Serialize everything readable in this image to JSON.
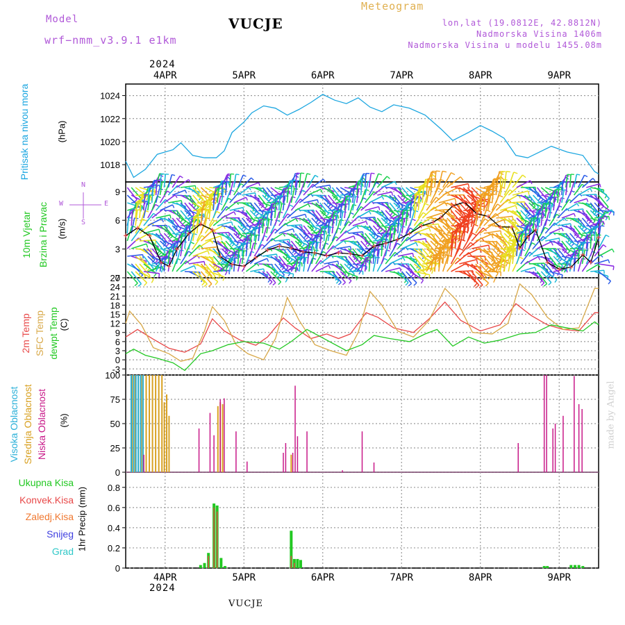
{
  "header": {
    "model_label": "Model",
    "model_name": "wrf−nmm_v3.9.1  e1km",
    "station": "VUCJE",
    "product": "Meteogram",
    "coords": "lon,lat (19.0812E, 42.8812N)",
    "altitude": "Nadmorska Visina 1406m",
    "model_altitude": "Nadmorska Visina u modelu 1455.08m",
    "year_top": "2024",
    "year_bottom": "2024",
    "footer_station": "VUCJE",
    "watermark": "made by Angel"
  },
  "colors": {
    "pressure": "#1ba6e0",
    "temp2m": "#e84848",
    "sfctemp": "#d8a848",
    "dewpoint": "#22c822",
    "high_cloud": "#2ab0d8",
    "mid_cloud": "#d8a020",
    "low_cloud": "#c81888",
    "total_precip": "#22c822",
    "conv_precip": "#e84848",
    "freezing_rain": "#f07830",
    "snow": "#4040e0",
    "graupel": "#30c8c8",
    "legend_purple": "#b058d8"
  },
  "panels": {
    "pressure": {
      "label": "Pritisak na nivou mora",
      "unit": "(hPa)"
    },
    "wind": {
      "label_1": "10m Vjetar",
      "label_2": "Brzina i Pravac",
      "unit": "(m/s)",
      "compass_n": "N",
      "compass_s": "S",
      "compass_w": "W",
      "compass_e": "E"
    },
    "temp": {
      "label_2m": "2m Temp",
      "label_sfc": "SFC Temp",
      "label_dew": "dewpt Temp",
      "unit": "(C)"
    },
    "cloud": {
      "label_high": "Visoka Oblacnost",
      "label_mid": "Srednja Oblacnost",
      "label_low": "Niska Oblacnost",
      "unit": "(%)"
    },
    "precip": {
      "unit": "1hr Precip (mm)",
      "legend": [
        "Ukupna Kisa",
        "Konvek.Kisa",
        "Zaledj.Kisa",
        "Snijeg",
        "Grad"
      ]
    }
  },
  "chart_data": {
    "type": "line",
    "x_start_day": 3.5,
    "x_end_day": 9.5,
    "x_tick_labels": [
      "4APR",
      "5APR",
      "6APR",
      "7APR",
      "8APR",
      "9APR"
    ],
    "x_tick_days": [
      4,
      5,
      6,
      7,
      8,
      9
    ],
    "pressure": {
      "ylim": [
        1016.5,
        1025
      ],
      "y_ticks": [
        1018,
        1020,
        1022,
        1024
      ],
      "values": [
        [
          3.5,
          1018.3
        ],
        [
          3.6,
          1016.9
        ],
        [
          3.75,
          1017.6
        ],
        [
          3.9,
          1018.9
        ],
        [
          4.1,
          1019.3
        ],
        [
          4.2,
          1019.9
        ],
        [
          4.35,
          1018.8
        ],
        [
          4.5,
          1018.6
        ],
        [
          4.65,
          1018.6
        ],
        [
          4.75,
          1019.2
        ],
        [
          4.85,
          1020.8
        ],
        [
          5.0,
          1021.7
        ],
        [
          5.1,
          1022.5
        ],
        [
          5.25,
          1023.1
        ],
        [
          5.4,
          1022.9
        ],
        [
          5.55,
          1022.3
        ],
        [
          5.7,
          1022.8
        ],
        [
          5.85,
          1023.4
        ],
        [
          6.0,
          1024.1
        ],
        [
          6.15,
          1023.6
        ],
        [
          6.3,
          1023.3
        ],
        [
          6.45,
          1023.8
        ],
        [
          6.6,
          1023.0
        ],
        [
          6.75,
          1022.6
        ],
        [
          6.9,
          1023.2
        ],
        [
          7.1,
          1022.9
        ],
        [
          7.3,
          1022.3
        ],
        [
          7.5,
          1021.1
        ],
        [
          7.65,
          1020.1
        ],
        [
          7.85,
          1020.8
        ],
        [
          8.0,
          1021.4
        ],
        [
          8.15,
          1020.9
        ],
        [
          8.3,
          1020.3
        ],
        [
          8.45,
          1018.8
        ],
        [
          8.6,
          1018.6
        ],
        [
          8.75,
          1019.1
        ],
        [
          8.9,
          1019.6
        ],
        [
          9.1,
          1019.1
        ],
        [
          9.3,
          1018.8
        ],
        [
          9.45,
          1017.4
        ],
        [
          9.5,
          1017.2
        ]
      ]
    },
    "wind_speed": {
      "ylim": [
        0,
        10
      ],
      "y_ticks": [
        0,
        3,
        6,
        9
      ],
      "values": [
        [
          3.5,
          4.4
        ],
        [
          3.65,
          5.2
        ],
        [
          3.8,
          4.4
        ],
        [
          3.95,
          1.6
        ],
        [
          4.05,
          1.2
        ],
        [
          4.15,
          3.0
        ],
        [
          4.3,
          4.6
        ],
        [
          4.45,
          5.6
        ],
        [
          4.6,
          5.0
        ],
        [
          4.7,
          2.2
        ],
        [
          4.85,
          1.4
        ],
        [
          5.0,
          1.2
        ],
        [
          5.15,
          2.1
        ],
        [
          5.3,
          2.9
        ],
        [
          5.45,
          3.3
        ],
        [
          5.6,
          3.1
        ],
        [
          5.75,
          2.7
        ],
        [
          5.9,
          2.6
        ],
        [
          6.05,
          2.3
        ],
        [
          6.2,
          2.6
        ],
        [
          6.35,
          2.5
        ],
        [
          6.5,
          2.3
        ],
        [
          6.65,
          3.3
        ],
        [
          6.8,
          3.6
        ],
        [
          6.95,
          4.0
        ],
        [
          7.1,
          4.6
        ],
        [
          7.25,
          5.4
        ],
        [
          7.4,
          5.8
        ],
        [
          7.5,
          6.3
        ],
        [
          7.65,
          7.5
        ],
        [
          7.8,
          7.9
        ],
        [
          7.95,
          6.7
        ],
        [
          8.1,
          6.4
        ],
        [
          8.25,
          5.3
        ],
        [
          8.4,
          5.3
        ],
        [
          8.5,
          3.1
        ],
        [
          8.6,
          4.3
        ],
        [
          8.7,
          5.0
        ],
        [
          8.85,
          1.6
        ],
        [
          9.0,
          0.9
        ],
        [
          9.15,
          1.1
        ],
        [
          9.3,
          2.4
        ],
        [
          9.4,
          1.6
        ],
        [
          9.5,
          4.2
        ]
      ]
    },
    "temperature": {
      "ylim": [
        -5,
        27
      ],
      "y_ticks": [
        -3,
        0,
        3,
        6,
        9,
        12,
        15,
        18,
        21,
        24,
        27
      ],
      "series": [
        {
          "name": "2m Temp",
          "values": [
            [
              3.5,
              7.5
            ],
            [
              3.65,
              10.0
            ],
            [
              3.85,
              6.8
            ],
            [
              4.05,
              3.8
            ],
            [
              4.25,
              2.5
            ],
            [
              4.45,
              5.2
            ],
            [
              4.6,
              13.5
            ],
            [
              4.75,
              9.5
            ],
            [
              4.95,
              6.5
            ],
            [
              5.15,
              4.8
            ],
            [
              5.3,
              7.5
            ],
            [
              5.5,
              13.8
            ],
            [
              5.65,
              10.5
            ],
            [
              5.85,
              7.0
            ],
            [
              6.05,
              8.5
            ],
            [
              6.2,
              7.0
            ],
            [
              6.35,
              8.5
            ],
            [
              6.55,
              15.5
            ],
            [
              6.7,
              14.0
            ],
            [
              6.9,
              10.5
            ],
            [
              7.15,
              9.0
            ],
            [
              7.35,
              13.5
            ],
            [
              7.55,
              19.0
            ],
            [
              7.75,
              13.0
            ],
            [
              8.0,
              9.5
            ],
            [
              8.25,
              11.5
            ],
            [
              8.45,
              18.5
            ],
            [
              8.65,
              14.5
            ],
            [
              8.85,
              11.5
            ],
            [
              9.05,
              10.0
            ],
            [
              9.25,
              9.5
            ],
            [
              9.45,
              15.5
            ],
            [
              9.5,
              15.5
            ]
          ]
        },
        {
          "name": "SFC Temp",
          "values": [
            [
              3.5,
              12.0
            ],
            [
              3.55,
              16.0
            ],
            [
              3.7,
              11.5
            ],
            [
              3.85,
              4.0
            ],
            [
              4.05,
              2.0
            ],
            [
              4.2,
              -0.5
            ],
            [
              4.35,
              0.5
            ],
            [
              4.5,
              9.5
            ],
            [
              4.6,
              17.5
            ],
            [
              4.75,
              13.0
            ],
            [
              4.9,
              5.0
            ],
            [
              5.05,
              2.0
            ],
            [
              5.25,
              0.0
            ],
            [
              5.4,
              7.0
            ],
            [
              5.55,
              20.5
            ],
            [
              5.7,
              13.0
            ],
            [
              5.9,
              5.0
            ],
            [
              6.1,
              3.0
            ],
            [
              6.3,
              1.5
            ],
            [
              6.45,
              9.0
            ],
            [
              6.6,
              22.5
            ],
            [
              6.75,
              18.0
            ],
            [
              6.95,
              9.5
            ],
            [
              7.15,
              7.5
            ],
            [
              7.35,
              13.0
            ],
            [
              7.55,
              23.5
            ],
            [
              7.7,
              19.5
            ],
            [
              7.9,
              9.0
            ],
            [
              8.15,
              8.5
            ],
            [
              8.35,
              12.0
            ],
            [
              8.5,
              25.0
            ],
            [
              8.65,
              21.5
            ],
            [
              8.85,
              14.0
            ],
            [
              9.05,
              10.0
            ],
            [
              9.25,
              10.5
            ],
            [
              9.45,
              23.5
            ],
            [
              9.5,
              23.5
            ]
          ]
        },
        {
          "name": "dewpt Temp",
          "values": [
            [
              3.5,
              2.0
            ],
            [
              3.6,
              3.5
            ],
            [
              3.75,
              1.5
            ],
            [
              3.9,
              0.5
            ],
            [
              4.1,
              -1.0
            ],
            [
              4.25,
              -3.5
            ],
            [
              4.45,
              2.0
            ],
            [
              4.6,
              3.0
            ],
            [
              4.8,
              5.0
            ],
            [
              5.0,
              6.0
            ],
            [
              5.25,
              5.5
            ],
            [
              5.45,
              3.5
            ],
            [
              5.6,
              6.0
            ],
            [
              5.8,
              10.0
            ],
            [
              6.05,
              6.5
            ],
            [
              6.3,
              3.0
            ],
            [
              6.5,
              5.0
            ],
            [
              6.65,
              8.0
            ],
            [
              6.85,
              7.0
            ],
            [
              7.1,
              6.0
            ],
            [
              7.3,
              8.5
            ],
            [
              7.45,
              10.0
            ],
            [
              7.65,
              4.5
            ],
            [
              7.85,
              7.5
            ],
            [
              8.05,
              5.5
            ],
            [
              8.25,
              6.5
            ],
            [
              8.5,
              8.5
            ],
            [
              8.7,
              9.0
            ],
            [
              8.9,
              11.5
            ],
            [
              9.1,
              10.5
            ],
            [
              9.3,
              9.5
            ],
            [
              9.45,
              12.5
            ],
            [
              9.5,
              11.5
            ]
          ]
        }
      ]
    },
    "cloud": {
      "ylim": [
        0,
        100
      ],
      "y_ticks": [
        0,
        25,
        50,
        75,
        100
      ],
      "high": [
        [
          3.57,
          100
        ],
        [
          3.6,
          100
        ],
        [
          3.63,
          100
        ],
        [
          3.66,
          100
        ],
        [
          3.69,
          100
        ],
        [
          3.72,
          100
        ]
      ],
      "mid": [
        [
          3.58,
          100
        ],
        [
          3.62,
          100
        ],
        [
          3.66,
          100
        ],
        [
          3.7,
          100
        ],
        [
          3.76,
          100
        ],
        [
          3.8,
          100
        ],
        [
          3.84,
          100
        ],
        [
          3.88,
          100
        ],
        [
          3.92,
          100
        ],
        [
          3.96,
          100
        ],
        [
          3.99,
          72
        ],
        [
          4.02,
          80
        ],
        [
          4.05,
          58
        ],
        [
          4.67,
          68
        ],
        [
          4.7,
          72
        ],
        [
          4.73,
          70
        ],
        [
          5.6,
          18
        ]
      ],
      "low": [
        [
          3.73,
          18
        ],
        [
          4.43,
          45
        ],
        [
          4.57,
          61
        ],
        [
          4.62,
          38
        ],
        [
          4.7,
          75
        ],
        [
          4.75,
          76
        ],
        [
          4.9,
          42
        ],
        [
          5.04,
          11
        ],
        [
          5.5,
          20
        ],
        [
          5.53,
          30
        ],
        [
          5.62,
          20
        ],
        [
          5.65,
          89
        ],
        [
          5.68,
          37
        ],
        [
          5.8,
          42
        ],
        [
          6.25,
          2
        ],
        [
          6.5,
          42
        ],
        [
          6.65,
          10
        ],
        [
          8.48,
          30
        ],
        [
          8.81,
          100
        ],
        [
          8.84,
          100
        ],
        [
          8.92,
          45
        ],
        [
          8.95,
          50
        ],
        [
          9.05,
          58
        ],
        [
          9.19,
          99
        ],
        [
          9.25,
          70
        ],
        [
          9.29,
          65
        ]
      ]
    },
    "precip": {
      "ylim": [
        0,
        0.95
      ],
      "y_ticks": [
        0,
        0.2,
        0.4,
        0.6,
        0.8
      ],
      "total": [
        [
          4.45,
          0.03
        ],
        [
          4.5,
          0.05
        ],
        [
          4.55,
          0.15
        ],
        [
          4.62,
          0.64
        ],
        [
          4.66,
          0.62
        ],
        [
          4.71,
          0.1
        ],
        [
          4.76,
          0.02
        ],
        [
          5.6,
          0.37
        ],
        [
          5.64,
          0.09
        ],
        [
          5.68,
          0.09
        ],
        [
          5.72,
          0.08
        ],
        [
          8.81,
          0.02
        ],
        [
          8.85,
          0.02
        ],
        [
          9.15,
          0.03
        ],
        [
          9.2,
          0.03
        ],
        [
          9.25,
          0.03
        ],
        [
          9.3,
          0.02
        ]
      ],
      "convective": [
        [
          4.55,
          0.12
        ],
        [
          4.62,
          0.6
        ],
        [
          4.66,
          0.56
        ],
        [
          5.6,
          0.12
        ],
        [
          5.64,
          0.05
        ]
      ]
    }
  }
}
